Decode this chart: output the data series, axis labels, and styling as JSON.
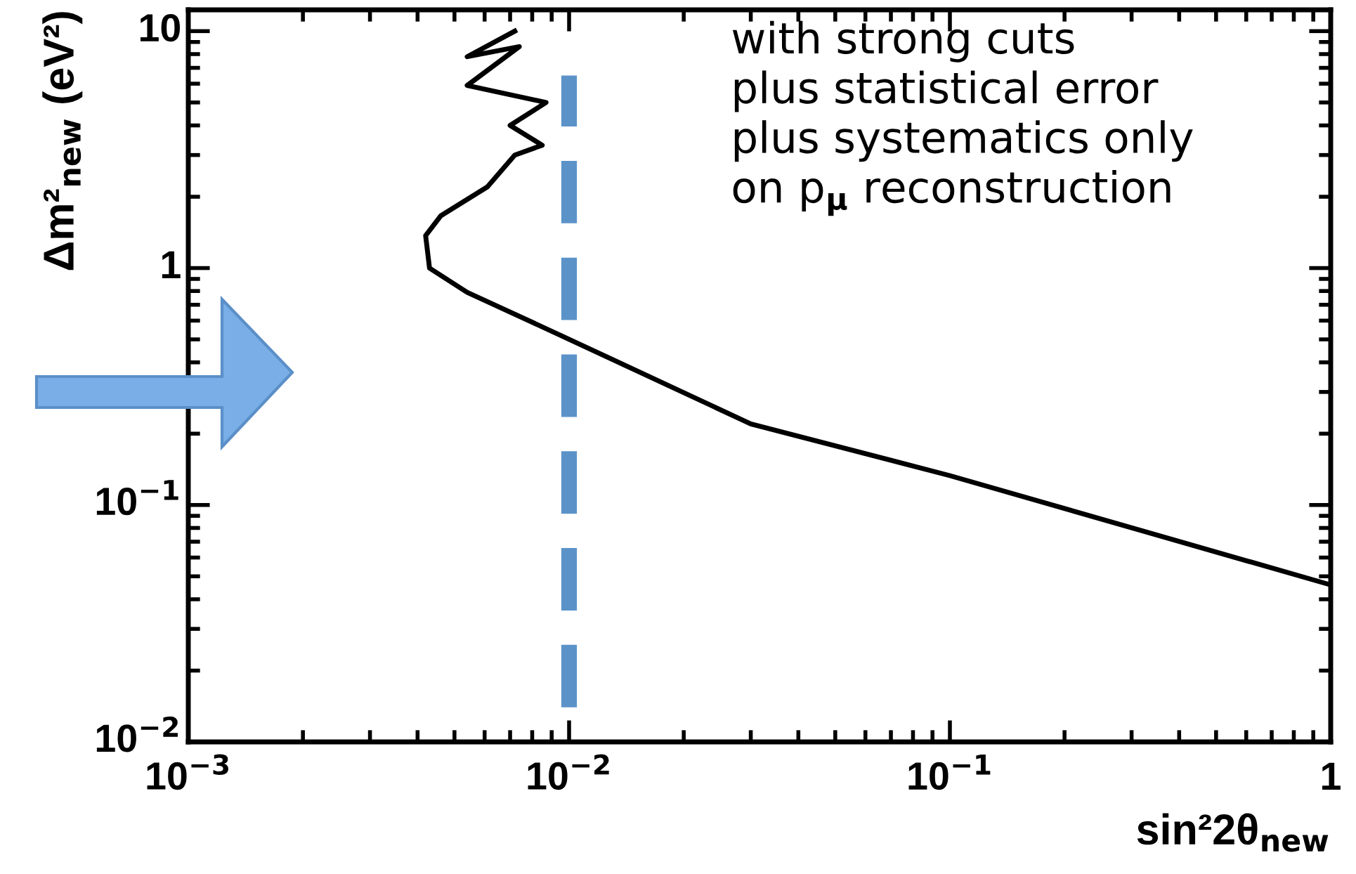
{
  "chart_data": {
    "type": "line",
    "xlabel": "sin²2θ$_{new}$",
    "ylabel": "Δm²$_{new}$ (eV²)",
    "log": "xy",
    "xlim": [
      0.001,
      1
    ],
    "ylim": [
      0.01,
      12.3
    ],
    "xticks": [
      {
        "value": 0.001,
        "label": "10$^{−3}$"
      },
      {
        "value": 0.01,
        "label": "10$^{−2}$"
      },
      {
        "value": 0.1,
        "label": "10$^{−1}$"
      },
      1
    ],
    "yticks": [
      {
        "value": 0.01,
        "label": "10$^{−2}$"
      },
      {
        "value": 0.1,
        "label": "10$^{−1}$"
      },
      1,
      10
    ],
    "grid": false,
    "legend": false,
    "series": [
      {
        "color": "#000000",
        "line_style": "solid",
        "x": [
          0.0072,
          0.0054,
          0.0074,
          0.0054,
          0.0087,
          0.007,
          0.0085,
          0.0072,
          0.0061,
          0.0046,
          0.0042,
          0.0043,
          0.0054,
          0.0095,
          0.03,
          0.1,
          1
        ],
        "values": [
          10,
          7.8,
          8.6,
          5.9,
          5.0,
          4.0,
          3.3,
          3.0,
          2.2,
          1.66,
          1.37,
          1.0,
          0.79,
          0.52,
          0.22,
          0.133,
          0.046
        ]
      },
      {
        "color": "#5b93c9",
        "line_style": "dashed",
        "x": [
          0.01,
          0.01
        ],
        "values": [
          0.014,
          6.5
        ]
      }
    ],
    "annotations": [
      "with strong cuts\nplus statistical error\nplus systematics only\non p$_{μ}$ reconstruction"
    ]
  }
}
